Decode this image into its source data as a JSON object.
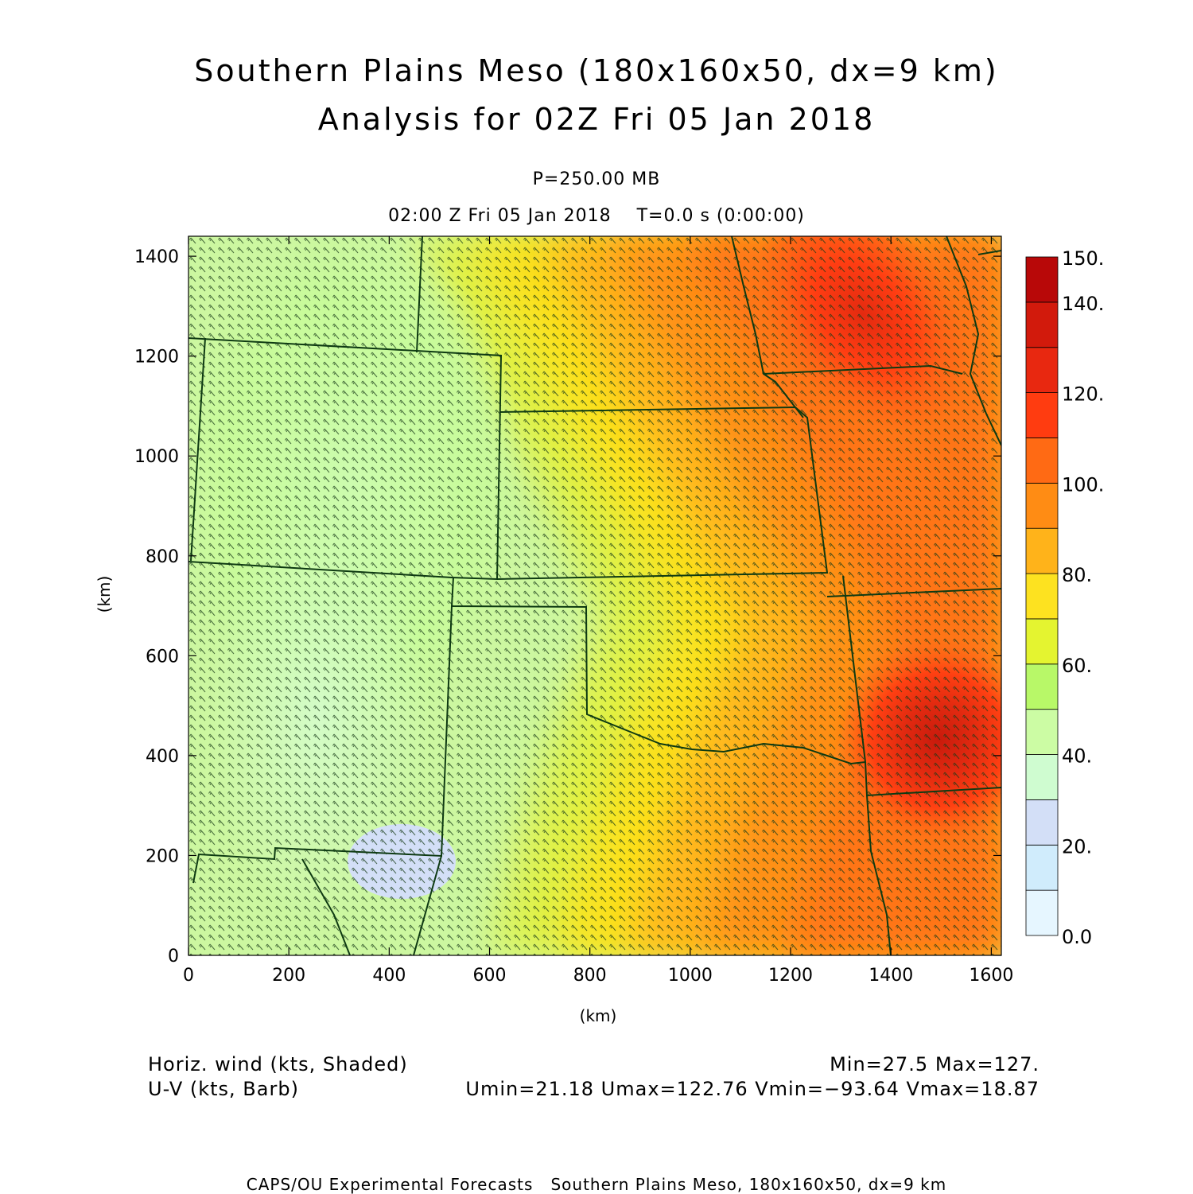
{
  "title": {
    "line1": "Southern Plains Meso (180x160x50, dx=9 km)",
    "line2": "Analysis for 02Z Fri 05 Jan 2018"
  },
  "subtitle": {
    "pressure": "P=250.00 MB",
    "time": "02:00 Z Fri 05 Jan 2018    T=0.0 s (0:00:00)"
  },
  "chart_data": {
    "type": "heatmap",
    "subtype": "filled contour map with wind barbs and state boundaries",
    "xlabel": "(km)",
    "ylabel": "(km)",
    "xlim": [
      0,
      1620
    ],
    "ylim": [
      0,
      1440
    ],
    "xticks": [
      0,
      200,
      400,
      600,
      800,
      1000,
      1200,
      1400,
      1600
    ],
    "yticks": [
      0,
      200,
      400,
      600,
      800,
      1000,
      1200,
      1400
    ],
    "colorbar": {
      "levels": [
        0,
        10,
        20,
        30,
        40,
        50,
        60,
        70,
        80,
        90,
        100,
        110,
        120,
        130,
        140,
        150
      ],
      "labels": [
        "0.0",
        "20.",
        "40.",
        "60.",
        "80.",
        "100.",
        "120.",
        "140.",
        "150."
      ],
      "label_values": [
        0,
        20,
        40,
        60,
        80,
        100,
        120,
        140,
        150
      ],
      "colors": [
        "#e6f6ff",
        "#d0ecfc",
        "#d3dff7",
        "#cffcd0",
        "#ccfca4",
        "#b8f868",
        "#e4f430",
        "#fde220",
        "#ffb31a",
        "#ff8c14",
        "#ff6a14",
        "#ff3c10",
        "#e82810",
        "#d21a0c",
        "#b80808"
      ]
    },
    "field": {
      "name": "Horiz. wind speed (kts)",
      "min": 27.5,
      "max": 127,
      "features": [
        {
          "kind": "maximum",
          "x": 1300,
          "y": 1250,
          "value": 127
        },
        {
          "kind": "local maximum",
          "x": 1560,
          "y": 440,
          "value": 125
        },
        {
          "kind": "minimum",
          "x": 430,
          "y": 170,
          "value": 27.5
        }
      ]
    },
    "barbs": {
      "field": "U-V (kts)",
      "umin": 21.18,
      "umax": 122.76,
      "vmin": -93.64,
      "vmax": 18.87
    }
  },
  "legend": {
    "left_line1": "Horiz. wind (kts, Shaded)",
    "left_line2": "U-V (kts, Barb)",
    "right_line1": "Min=27.5 Max=127.",
    "right_line2": "Umin=21.18 Umax=122.76 Vmin=−93.64 Vmax=18.87"
  },
  "footer": "CAPS/OU Experimental Forecasts   Southern Plains Meso, 180x160x50, dx=9 km"
}
